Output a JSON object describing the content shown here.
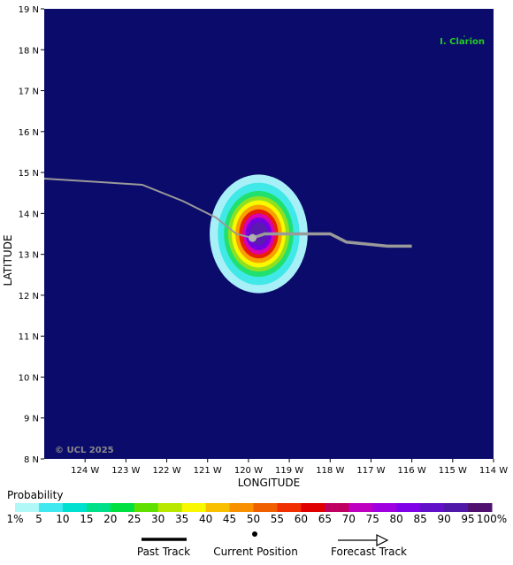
{
  "map": {
    "lon_range": [
      -125,
      -114
    ],
    "lat_range": [
      8,
      19
    ],
    "background_color": "#0b0b6b",
    "lat_ticks": [
      "19 N",
      "18 N",
      "17 N",
      "16 N",
      "15 N",
      "14 N",
      "13 N",
      "12 N",
      "11 N",
      "10 N",
      "9 N",
      "8 N"
    ],
    "lon_ticks": [
      "124 W",
      "123 W",
      "122 W",
      "121 W",
      "120 W",
      "119 W",
      "118 W",
      "117 W",
      "116 W",
      "115 W",
      "114 W"
    ],
    "xlabel": "LONGITUDE",
    "ylabel": "LATITUDE",
    "island_label": "I. Clarion",
    "copyright": "© UCL 2025"
  },
  "track": {
    "color": "#9a9a9a",
    "past": [
      [
        -125.0,
        14.85
      ],
      [
        -122.6,
        14.7
      ],
      [
        -121.6,
        14.3
      ],
      [
        -120.8,
        13.9
      ],
      [
        -120.3,
        13.5
      ],
      [
        -119.9,
        13.4
      ]
    ],
    "forecast": [
      [
        -119.9,
        13.4
      ],
      [
        -119.6,
        13.5
      ],
      [
        -118.0,
        13.5
      ],
      [
        -117.6,
        13.3
      ],
      [
        -116.6,
        13.2
      ],
      [
        -116.0,
        13.2
      ]
    ],
    "current_position": [
      -119.9,
      13.4
    ]
  },
  "probability": {
    "center": [
      -119.75,
      13.5
    ],
    "levels": [
      {
        "value": 1,
        "color": "#a8f0f8",
        "rx_deg": 1.2,
        "ry_deg": 1.45
      },
      {
        "value": 5,
        "color": "#40e8e8",
        "rx_deg": 1.0,
        "ry_deg": 1.25
      },
      {
        "value": 15,
        "color": "#20e070",
        "rx_deg": 0.85,
        "ry_deg": 1.05
      },
      {
        "value": 25,
        "color": "#90e020",
        "rx_deg": 0.75,
        "ry_deg": 0.92
      },
      {
        "value": 35,
        "color": "#f8f800",
        "rx_deg": 0.66,
        "ry_deg": 0.82
      },
      {
        "value": 45,
        "color": "#f8a000",
        "rx_deg": 0.57,
        "ry_deg": 0.71
      },
      {
        "value": 60,
        "color": "#e82000",
        "rx_deg": 0.48,
        "ry_deg": 0.6
      },
      {
        "value": 70,
        "color": "#d800b0",
        "rx_deg": 0.4,
        "ry_deg": 0.5
      },
      {
        "value": 85,
        "color": "#7000e0",
        "rx_deg": 0.32,
        "ry_deg": 0.4
      },
      {
        "value": 95,
        "color": "#5a1ab0",
        "rx_deg": 0.22,
        "ry_deg": 0.28
      }
    ]
  },
  "legend": {
    "title": "Probability",
    "labels": [
      "1%",
      "5",
      "10",
      "15",
      "20",
      "25",
      "30",
      "35",
      "40",
      "45",
      "50",
      "55",
      "60",
      "65",
      "70",
      "75",
      "80",
      "85",
      "90",
      "95",
      "100%"
    ],
    "colors": [
      "#b0f8f8",
      "#40e8f0",
      "#00e0d0",
      "#00e08a",
      "#00e040",
      "#60e000",
      "#b8e800",
      "#f8f800",
      "#f8c000",
      "#f89000",
      "#f06000",
      "#f03000",
      "#e00000",
      "#c00060",
      "#c000c0",
      "#a000e0",
      "#8000e8",
      "#6010c8",
      "#5018a8",
      "#501070"
    ],
    "past_track_label": "Past Track",
    "current_position_label": "Current Position",
    "forecast_track_label": "Forecast Track"
  }
}
